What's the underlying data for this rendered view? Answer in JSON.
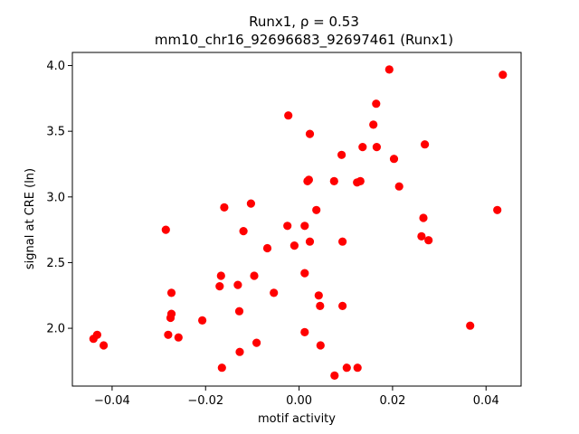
{
  "chart_data": {
    "type": "scatter",
    "title_line1": "Runx1, ρ = 0.53",
    "title_line2": "mm10_chr16_92696683_92697461 (Runx1)",
    "xlabel": "motif activity",
    "ylabel": "signal at CRE (ln)",
    "xlim": [
      -0.0485,
      0.0475
    ],
    "ylim": [
      1.56,
      4.1
    ],
    "xticks": [
      -0.04,
      -0.02,
      0.0,
      0.02,
      0.04
    ],
    "xtick_labels": [
      "−0.04",
      "−0.02",
      "0.00",
      "0.02",
      "0.04"
    ],
    "yticks": [
      2.0,
      2.5,
      3.0,
      3.5,
      4.0
    ],
    "ytick_labels": [
      "2.0",
      "2.5",
      "3.0",
      "3.5",
      "4.0"
    ],
    "grid": false,
    "marker_color": "#ff0000",
    "points": [
      {
        "x": -0.044,
        "y": 1.92
      },
      {
        "x": -0.0432,
        "y": 1.95
      },
      {
        "x": -0.0418,
        "y": 1.87
      },
      {
        "x": -0.0285,
        "y": 2.75
      },
      {
        "x": -0.028,
        "y": 1.95
      },
      {
        "x": -0.0275,
        "y": 2.08
      },
      {
        "x": -0.0273,
        "y": 2.11
      },
      {
        "x": -0.0273,
        "y": 2.27
      },
      {
        "x": -0.0258,
        "y": 1.93
      },
      {
        "x": -0.0207,
        "y": 2.06
      },
      {
        "x": -0.017,
        "y": 2.32
      },
      {
        "x": -0.0167,
        "y": 2.4
      },
      {
        "x": -0.0165,
        "y": 1.7
      },
      {
        "x": -0.016,
        "y": 2.92
      },
      {
        "x": -0.0131,
        "y": 2.33
      },
      {
        "x": -0.0128,
        "y": 2.13
      },
      {
        "x": -0.0127,
        "y": 1.82
      },
      {
        "x": -0.0119,
        "y": 2.74
      },
      {
        "x": -0.0103,
        "y": 2.95
      },
      {
        "x": -0.0096,
        "y": 2.4
      },
      {
        "x": -0.0091,
        "y": 1.89
      },
      {
        "x": -0.0068,
        "y": 2.61
      },
      {
        "x": -0.0054,
        "y": 2.27
      },
      {
        "x": -0.0025,
        "y": 2.78
      },
      {
        "x": -0.0023,
        "y": 3.62
      },
      {
        "x": -0.001,
        "y": 2.63
      },
      {
        "x": 0.0012,
        "y": 2.78
      },
      {
        "x": 0.0012,
        "y": 2.42
      },
      {
        "x": 0.0012,
        "y": 1.97
      },
      {
        "x": 0.0018,
        "y": 3.12
      },
      {
        "x": 0.0021,
        "y": 3.13
      },
      {
        "x": 0.0023,
        "y": 2.66
      },
      {
        "x": 0.0023,
        "y": 3.48
      },
      {
        "x": 0.0037,
        "y": 2.9
      },
      {
        "x": 0.0042,
        "y": 2.25
      },
      {
        "x": 0.0045,
        "y": 2.17
      },
      {
        "x": 0.0046,
        "y": 1.87
      },
      {
        "x": 0.0075,
        "y": 3.12
      },
      {
        "x": 0.0076,
        "y": 1.64
      },
      {
        "x": 0.0091,
        "y": 3.32
      },
      {
        "x": 0.0093,
        "y": 2.66
      },
      {
        "x": 0.0093,
        "y": 2.17
      },
      {
        "x": 0.0102,
        "y": 1.7
      },
      {
        "x": 0.0124,
        "y": 3.11
      },
      {
        "x": 0.0125,
        "y": 1.7
      },
      {
        "x": 0.0131,
        "y": 3.12
      },
      {
        "x": 0.0136,
        "y": 3.38
      },
      {
        "x": 0.0159,
        "y": 3.55
      },
      {
        "x": 0.0165,
        "y": 3.71
      },
      {
        "x": 0.0166,
        "y": 3.38
      },
      {
        "x": 0.0193,
        "y": 3.97
      },
      {
        "x": 0.0203,
        "y": 3.29
      },
      {
        "x": 0.0214,
        "y": 3.08
      },
      {
        "x": 0.0262,
        "y": 2.7
      },
      {
        "x": 0.0266,
        "y": 2.84
      },
      {
        "x": 0.0269,
        "y": 3.4
      },
      {
        "x": 0.0277,
        "y": 2.67
      },
      {
        "x": 0.0366,
        "y": 2.02
      },
      {
        "x": 0.0424,
        "y": 2.9
      },
      {
        "x": 0.0436,
        "y": 3.93
      }
    ]
  }
}
